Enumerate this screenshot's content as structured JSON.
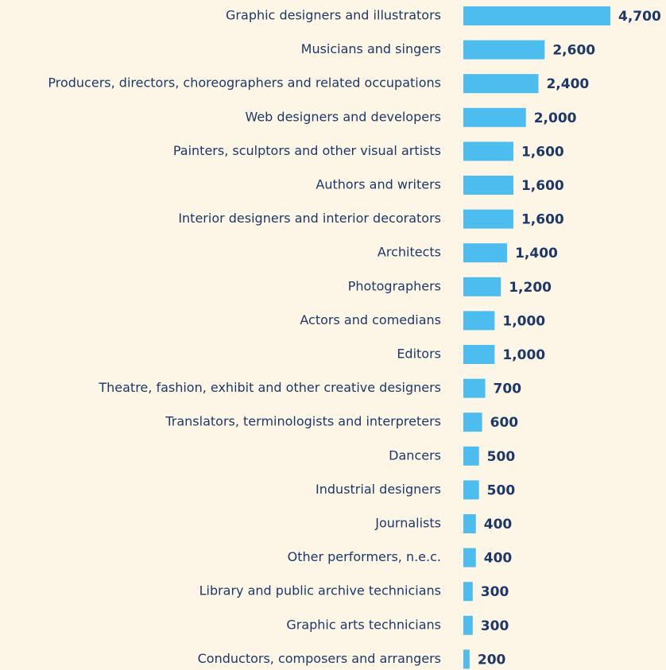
{
  "chart_data": {
    "type": "bar",
    "orientation": "horizontal",
    "color": "#4cbdee",
    "categories": [
      "Graphic designers and illustrators",
      "Musicians and singers",
      "Producers, directors, choreographers and related occupations",
      "Web designers and developers",
      "Painters, sculptors and other visual artists",
      "Authors and writers",
      "Interior designers and interior decorators",
      "Architects",
      "Photographers",
      "Actors and comedians",
      "Editors",
      "Theatre, fashion, exhibit and other creative designers",
      "Translators, terminologists and interpreters",
      "Dancers",
      "Industrial designers",
      "Journalists",
      "Other performers, n.e.c.",
      "Library and public archive technicians",
      "Graphic arts technicians",
      "Conductors, composers and arrangers"
    ],
    "values": [
      4700,
      2600,
      2400,
      2000,
      1600,
      1600,
      1600,
      1400,
      1200,
      1000,
      1000,
      700,
      600,
      500,
      500,
      400,
      400,
      300,
      300,
      200
    ],
    "value_labels": [
      "4,700",
      "2,600",
      "2,400",
      "2,000",
      "1,600",
      "1,600",
      "1,600",
      "1,400",
      "1,200",
      "1,000",
      "1,000",
      "700",
      "600",
      "500",
      "500",
      "400",
      "400",
      "300",
      "300",
      "200"
    ]
  }
}
